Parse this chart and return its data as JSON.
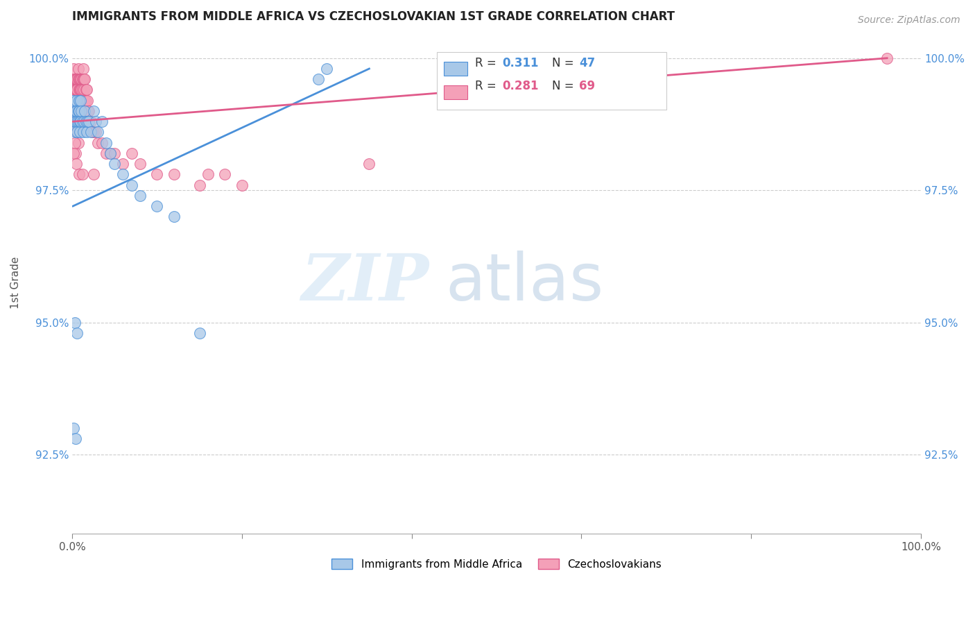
{
  "title": "IMMIGRANTS FROM MIDDLE AFRICA VS CZECHOSLOVAKIAN 1ST GRADE CORRELATION CHART",
  "source": "Source: ZipAtlas.com",
  "ylabel": "1st Grade",
  "xlim": [
    0.0,
    1.0
  ],
  "ylim": [
    0.91,
    1.005
  ],
  "x_ticks": [
    0.0,
    0.2,
    0.4,
    0.6,
    0.8,
    1.0
  ],
  "x_tick_labels": [
    "0.0%",
    "",
    "",
    "",
    "",
    "100.0%"
  ],
  "y_ticks": [
    0.925,
    0.95,
    0.975,
    1.0
  ],
  "y_tick_labels": [
    "92.5%",
    "95.0%",
    "97.5%",
    "100.0%"
  ],
  "blue_color": "#a8c8e8",
  "pink_color": "#f4a0b8",
  "blue_line_color": "#4a90d9",
  "pink_line_color": "#e05a8a",
  "legend_blue_label": "Immigrants from Middle Africa",
  "legend_pink_label": "Czechoslovakians",
  "R_blue": 0.311,
  "N_blue": 47,
  "R_pink": 0.281,
  "N_pink": 69,
  "watermark_zip": "ZIP",
  "watermark_atlas": "atlas",
  "blue_scatter_x": [
    0.001,
    0.002,
    0.003,
    0.003,
    0.004,
    0.004,
    0.005,
    0.005,
    0.006,
    0.006,
    0.007,
    0.007,
    0.008,
    0.008,
    0.009,
    0.009,
    0.01,
    0.01,
    0.011,
    0.012,
    0.013,
    0.014,
    0.015,
    0.016,
    0.017,
    0.018,
    0.02,
    0.022,
    0.025,
    0.028,
    0.03,
    0.035,
    0.04,
    0.045,
    0.05,
    0.06,
    0.07,
    0.08,
    0.1,
    0.12,
    0.15,
    0.003,
    0.006,
    0.002,
    0.004,
    0.29,
    0.3
  ],
  "blue_scatter_y": [
    0.992,
    0.99,
    0.988,
    0.986,
    0.99,
    0.988,
    0.992,
    0.99,
    0.988,
    0.986,
    0.99,
    0.988,
    0.992,
    0.99,
    0.988,
    0.986,
    0.992,
    0.988,
    0.99,
    0.988,
    0.986,
    0.988,
    0.99,
    0.988,
    0.986,
    0.988,
    0.988,
    0.986,
    0.99,
    0.988,
    0.986,
    0.988,
    0.984,
    0.982,
    0.98,
    0.978,
    0.976,
    0.974,
    0.972,
    0.97,
    0.948,
    0.95,
    0.948,
    0.93,
    0.928,
    0.996,
    0.998
  ],
  "pink_scatter_x": [
    0.001,
    0.001,
    0.002,
    0.002,
    0.003,
    0.003,
    0.004,
    0.004,
    0.005,
    0.005,
    0.006,
    0.006,
    0.007,
    0.007,
    0.008,
    0.008,
    0.009,
    0.009,
    0.01,
    0.01,
    0.011,
    0.011,
    0.012,
    0.012,
    0.013,
    0.013,
    0.014,
    0.014,
    0.015,
    0.015,
    0.016,
    0.016,
    0.017,
    0.018,
    0.019,
    0.02,
    0.022,
    0.024,
    0.025,
    0.028,
    0.03,
    0.035,
    0.04,
    0.045,
    0.05,
    0.06,
    0.07,
    0.08,
    0.1,
    0.12,
    0.002,
    0.003,
    0.004,
    0.005,
    0.006,
    0.007,
    0.15,
    0.16,
    0.18,
    0.2,
    0.004,
    0.003,
    0.002,
    0.005,
    0.008,
    0.012,
    0.35,
    0.96,
    0.025
  ],
  "pink_scatter_y": [
    0.996,
    0.994,
    0.996,
    0.998,
    0.996,
    0.994,
    0.996,
    0.994,
    0.996,
    0.994,
    0.996,
    0.994,
    0.998,
    0.996,
    0.996,
    0.994,
    0.996,
    0.994,
    0.996,
    0.994,
    0.996,
    0.994,
    0.996,
    0.994,
    0.996,
    0.998,
    0.996,
    0.994,
    0.996,
    0.992,
    0.994,
    0.992,
    0.994,
    0.992,
    0.99,
    0.99,
    0.988,
    0.986,
    0.986,
    0.986,
    0.984,
    0.984,
    0.982,
    0.982,
    0.982,
    0.98,
    0.982,
    0.98,
    0.978,
    0.978,
    0.99,
    0.988,
    0.988,
    0.986,
    0.986,
    0.984,
    0.976,
    0.978,
    0.978,
    0.976,
    0.982,
    0.984,
    0.982,
    0.98,
    0.978,
    0.978,
    0.98,
    1.0,
    0.978
  ],
  "blue_trend_x": [
    0.001,
    0.35
  ],
  "blue_trend_y": [
    0.972,
    0.998
  ],
  "pink_trend_x": [
    0.001,
    0.96
  ],
  "pink_trend_y": [
    0.988,
    1.0
  ]
}
